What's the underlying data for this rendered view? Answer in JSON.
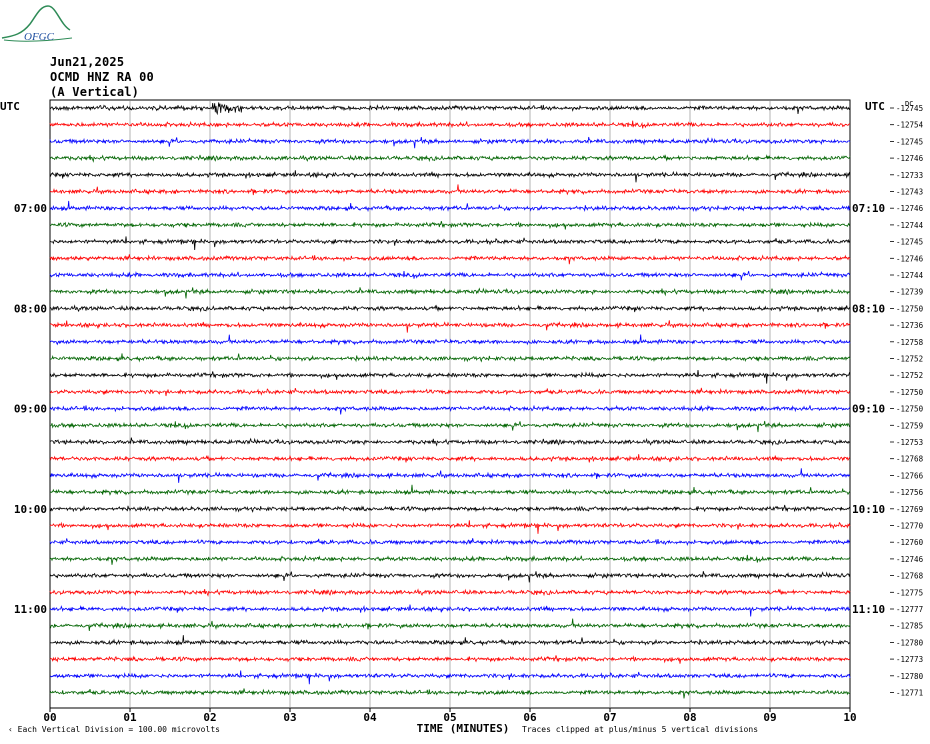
{
  "header": {
    "logo_text": "OFGC",
    "date": "Jun21,2025",
    "station": "OCMD HNZ RA 00",
    "component": "(A Vertical)"
  },
  "left_axis_title": "UTC",
  "right_axis_title": "UTC",
  "right_offset_title": "DC",
  "left_time_labels": [
    "07:00",
    "08:00",
    "09:00",
    "10:00",
    "11:00"
  ],
  "right_time_labels": [
    "07:10",
    "08:10",
    "09:10",
    "10:10",
    "11:10"
  ],
  "footer": {
    "scale_note": "Each Vertical Division =  100.00 microvolts",
    "clip_note": "Traces clipped at plus/minus 5 vertical divisions",
    "xlabel": "TIME (MINUTES)"
  },
  "colors": {
    "trace_cycle": [
      "#000000",
      "#ff0000",
      "#0000ff",
      "#006400"
    ],
    "grid": "#808080"
  },
  "chart_data": {
    "type": "line",
    "title": "",
    "xlabel": "TIME (MINUTES)",
    "ylabel": "UTC",
    "xlim": [
      0,
      10
    ],
    "x_ticks": [
      "00",
      "01",
      "02",
      "03",
      "04",
      "05",
      "06",
      "07",
      "08",
      "09",
      "10"
    ],
    "trace_count": 36,
    "trace_duration_minutes": 10,
    "grid": true,
    "dc_offsets": [
      -12745,
      -12754,
      -12745,
      -12746,
      -12733,
      -12743,
      -12746,
      -12744,
      -12745,
      -12746,
      -12744,
      -12739,
      -12750,
      -12736,
      -12758,
      -12752,
      -12752,
      -12750,
      -12750,
      -12759,
      -12753,
      -12768,
      -12766,
      -12756,
      -12769,
      -12770,
      -12760,
      -12746,
      -12768,
      -12775,
      -12777,
      -12785,
      -12780,
      -12773,
      -12780,
      -12771
    ]
  }
}
